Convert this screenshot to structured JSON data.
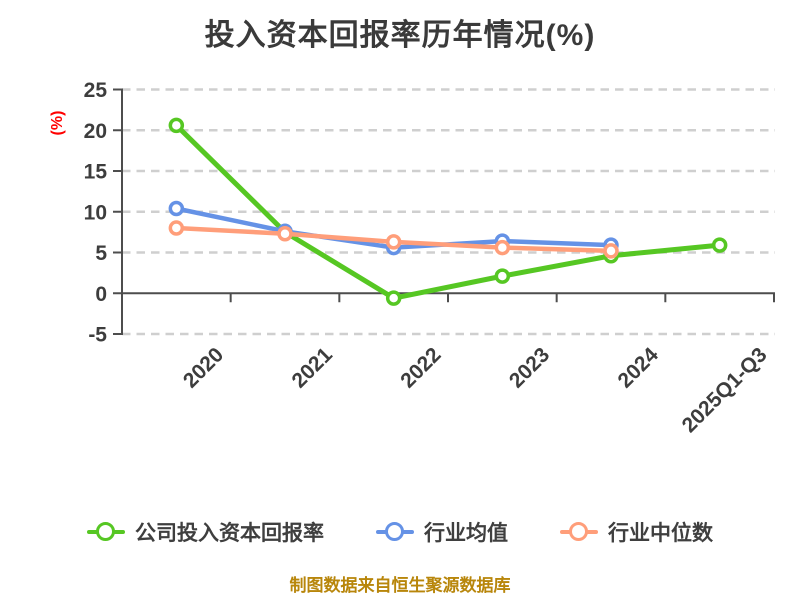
{
  "title": "投入资本回报率历年情况(%)",
  "footer": "制图数据来自恒生聚源数据库",
  "chart_data": {
    "type": "line",
    "title": "投入资本回报率历年情况(%)",
    "ylabel": "(%)",
    "ylabel_color": "#ff0000",
    "xlabel": "",
    "categories": [
      "2020",
      "2021",
      "2022",
      "2023",
      "2024",
      "2025Q1-Q3"
    ],
    "ylim": [
      -5,
      25
    ],
    "yticks": [
      25,
      20,
      15,
      10,
      5,
      0,
      -5
    ],
    "grid": "horizontal dashed",
    "grid_color": "#cfcfcf",
    "axis_color": "#4d4d4d",
    "text_color": "#3d3d3d",
    "legend_position": "bottom",
    "series": [
      {
        "name": "公司投入资本回报率",
        "color": "#56c723",
        "values": [
          20.6,
          7.5,
          -0.6,
          2.1,
          4.6,
          5.9
        ]
      },
      {
        "name": "行业均值",
        "color": "#6592e6",
        "values": [
          10.4,
          7.6,
          5.6,
          6.4,
          5.9,
          null
        ]
      },
      {
        "name": "行业中位数",
        "color": "#ff9e7a",
        "values": [
          8.0,
          7.3,
          6.3,
          5.6,
          5.2,
          null
        ]
      }
    ]
  }
}
